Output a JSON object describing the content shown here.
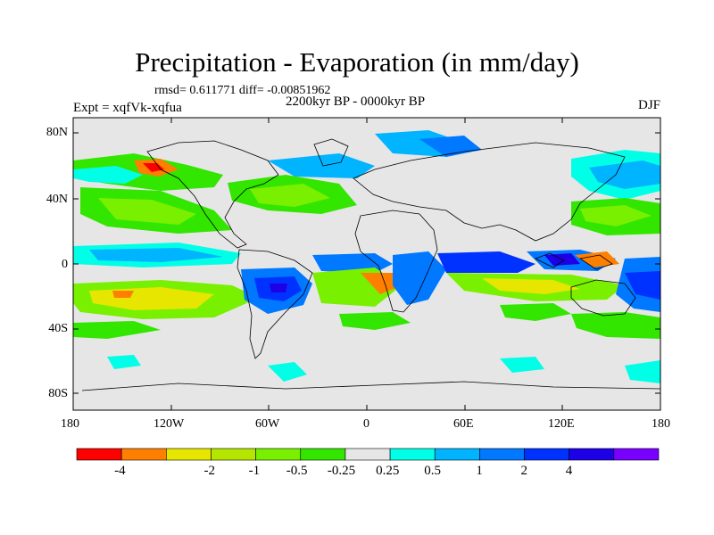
{
  "title": "Precipitation - Evaporation (in mm/day)",
  "stats": "rmsd= 0.611771 diff= -0.00851962",
  "period": "2200kyr BP - 0000kyr BP",
  "experiment": "Expt = xqfVk-xqfua",
  "season": "DJF",
  "map": {
    "lat_ticks": [
      "80N",
      "40N",
      "0",
      "40S",
      "80S"
    ],
    "lon_ticks": [
      "180",
      "120W",
      "60W",
      "0",
      "60E",
      "120E",
      "180"
    ],
    "land_color": "#e6e6e6",
    "coastline_color": "#000000"
  },
  "colorbar": {
    "colors": [
      "#ff0000",
      "#ff7f00",
      "#e6e600",
      "#b4e600",
      "#78f000",
      "#32e600",
      "#e6e6e6",
      "#00ffe6",
      "#00b4ff",
      "#0078ff",
      "#0032ff",
      "#1e00e6",
      "#7800ff"
    ],
    "labels": [
      "-4",
      "-2",
      "-1",
      "-0.5",
      "-0.25",
      "0.25",
      "0.5",
      "1",
      "2",
      "4"
    ]
  }
}
